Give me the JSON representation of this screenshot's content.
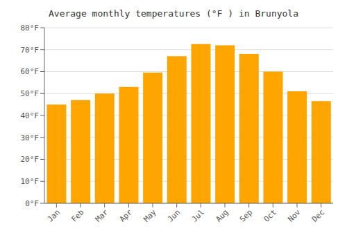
{
  "chart_data": {
    "type": "bar",
    "title": "Average monthly temperatures (°F ) in Brunyola",
    "categories": [
      "Jan",
      "Feb",
      "Mar",
      "Apr",
      "May",
      "Jun",
      "Jul",
      "Aug",
      "Sep",
      "Oct",
      "Nov",
      "Dec"
    ],
    "values": [
      45,
      47,
      50,
      53,
      59.5,
      67,
      72.5,
      72,
      68,
      60,
      51,
      46.5
    ],
    "color": "#FFA500",
    "ylim": [
      0,
      80
    ],
    "yticks": [
      {
        "value": 0,
        "label": "0°F"
      },
      {
        "value": 10,
        "label": "10°F"
      },
      {
        "value": 20,
        "label": "20°F"
      },
      {
        "value": 30,
        "label": "30°F"
      },
      {
        "value": 40,
        "label": "40°F"
      },
      {
        "value": 50,
        "label": "50°F"
      },
      {
        "value": 60,
        "label": "60°F"
      },
      {
        "value": 70,
        "label": "70°F"
      },
      {
        "value": 80,
        "label": "80°F"
      }
    ],
    "grid": true
  }
}
